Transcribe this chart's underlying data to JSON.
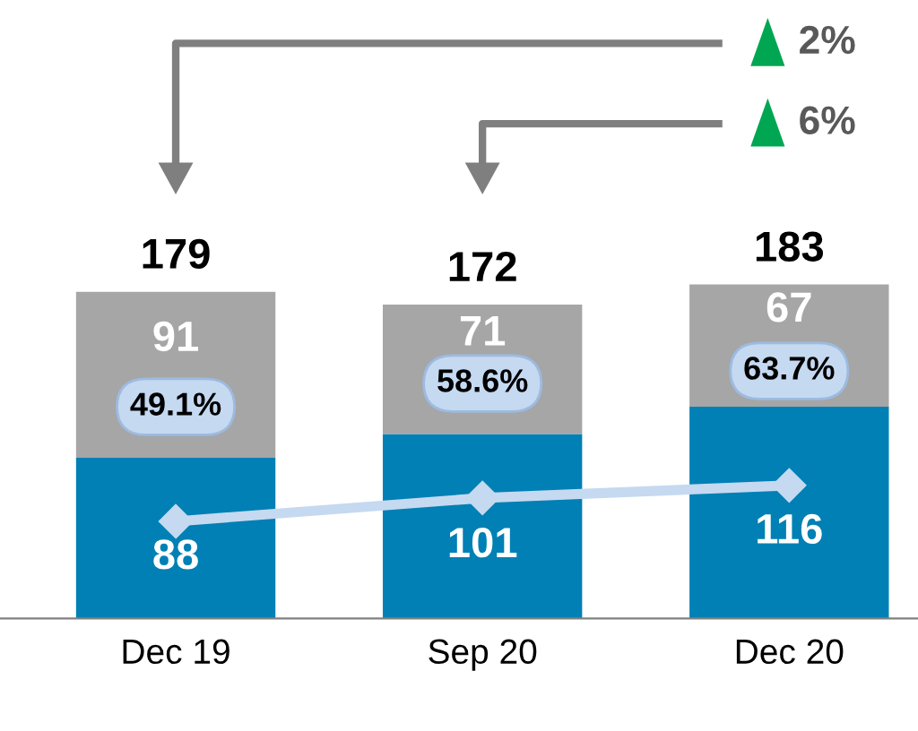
{
  "chart_data": {
    "type": "bar",
    "stacked": true,
    "categories": [
      "Dec 19",
      "Sep 20",
      "Dec 20"
    ],
    "series": [
      {
        "color": "#0080b4",
        "values": [
          88,
          101,
          116
        ]
      },
      {
        "color": "#a6a6a6",
        "values": [
          91,
          71,
          67
        ]
      },
      {
        "type": "line",
        "axis": "y2",
        "color": "#c5d9f1",
        "marker": "diamond",
        "values": [
          49.1,
          58.6,
          63.7
        ],
        "value_labels": [
          "49.1%",
          "58.6%",
          "63.7%"
        ]
      }
    ],
    "totals": [
      "179",
      "172",
      "183"
    ],
    "data_labels": true,
    "tick_labels": "x",
    "grid": false,
    "annotations": [
      "2%",
      "6%"
    ]
  }
}
